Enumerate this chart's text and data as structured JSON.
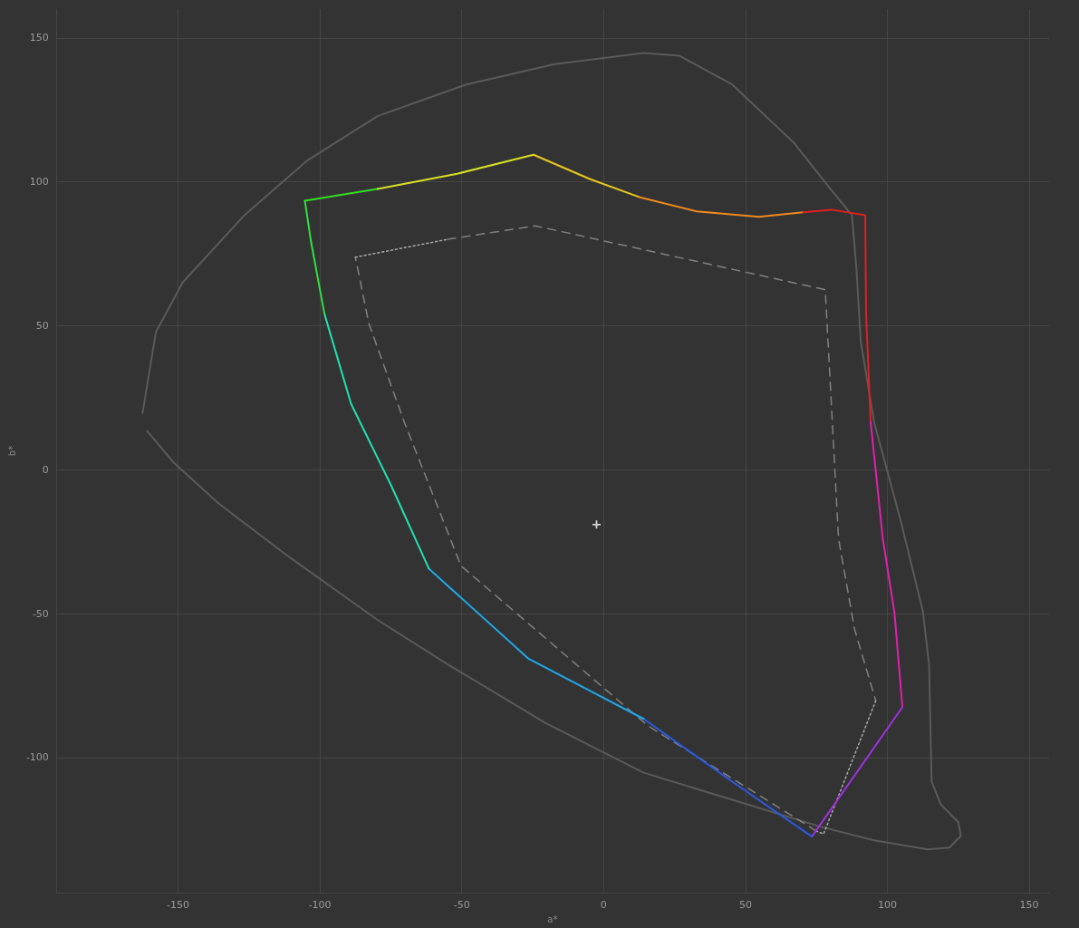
{
  "chart_data": {
    "type": "line",
    "xlabel": "a*",
    "ylabel": "b*",
    "xlim": [
      -193,
      157
    ],
    "ylim": [
      -147,
      160
    ],
    "xticks": [
      -150,
      -100,
      -50,
      0,
      50,
      100,
      150
    ],
    "yticks": [
      -100,
      -50,
      0,
      50,
      100,
      150
    ],
    "grid": true,
    "marker": "none",
    "line_style": "solid",
    "series": [
      {
        "color": "#5a5a5a",
        "x": [
          -162.5,
          -157.8,
          -148.4,
          -126.6,
          -104.7,
          -79.7,
          -48.4,
          -17.2,
          14.1,
          26.6,
          45.3,
          67.2,
          79.7,
          87.5,
          89.1,
          90.6,
          95.3,
          104.7,
          112.5,
          114.7,
          115.6,
          118.8,
          125,
          125.9,
          121.9,
          114.1,
          95.3,
          76.6,
          45.3,
          14.1,
          -20.3,
          -54.7,
          -79.7,
          -110.9,
          -135.9,
          -151.6,
          -160.9
        ],
        "values": [
          19.7,
          47.8,
          65,
          88.4,
          107.2,
          122.8,
          133.8,
          140.9,
          144.7,
          143.8,
          133.8,
          113.4,
          97.8,
          88.4,
          69.7,
          44.7,
          16.6,
          -17.8,
          -49.1,
          -67.8,
          -108.4,
          -116.3,
          -122.5,
          -127.2,
          -131.3,
          -131.9,
          -128.8,
          -124.1,
          -114.7,
          -105.3,
          -88.1,
          -67.8,
          -52.2,
          -30.3,
          -11.6,
          2.5,
          13.4
        ]
      },
      {
        "color": "#808080",
        "line_style": "dashed",
        "x": [
          -55,
          -24.1,
          78.1,
          82.8,
          88.4,
          95.9,
          null,
          75,
          15.6,
          -50.3,
          -70.3,
          -82.8,
          -87.5
        ],
        "values": [
          80,
          84.7,
          62.5,
          -24.1,
          -55.3,
          -80.3,
          null,
          -125.6,
          -89,
          -33.4,
          16.6,
          50.9,
          73.8
        ]
      },
      {
        "color": "#a8a8a8",
        "line_style": "dotted",
        "x": [
          -87.5,
          -55,
          null,
          95.9,
          77.5,
          75
        ],
        "values": [
          73.8,
          80,
          null,
          -80.3,
          -126.6,
          -125.6
        ]
      },
      {
        "color": "#33dd22",
        "x": [
          -105.3,
          -79.7
        ],
        "values": [
          93.4,
          97.5
        ]
      },
      {
        "color": "#d9e026",
        "x": [
          -79.7,
          -51.6,
          -24.7
        ],
        "values": [
          97.5,
          102.8,
          109.4
        ]
      },
      {
        "color": "#e8c81e",
        "x": [
          -24.7,
          -4.7,
          12.5
        ],
        "values": [
          109.4,
          100.9,
          94.7
        ]
      },
      {
        "color": "#ef8a1e",
        "x": [
          12.5,
          32.8,
          54.7,
          70.3
        ],
        "values": [
          94.7,
          89.7,
          87.8,
          89.4
        ]
      },
      {
        "color": "#e02020",
        "x": [
          70.3,
          80.3,
          92.2,
          92.5,
          94.1
        ],
        "values": [
          89.4,
          90.3,
          88.4,
          54.1,
          16.6
        ]
      },
      {
        "color": "#e020b0",
        "x": [
          94.1,
          98.4,
          102.5,
          105.3
        ],
        "values": [
          16.6,
          -24.1,
          -49.7,
          -82.5
        ]
      },
      {
        "color": "#a030e0",
        "x": [
          105.3,
          73.4
        ],
        "values": [
          -82.5,
          -127.5
        ]
      },
      {
        "color": "#2a5ae0",
        "x": [
          73.4,
          45.3,
          14.1
        ],
        "values": [
          -127.5,
          -108.4,
          -86.6
        ]
      },
      {
        "color": "#20a8e8",
        "x": [
          14.1,
          -26.6,
          -61.6
        ],
        "values": [
          -86.6,
          -65.6,
          -34.4
        ]
      },
      {
        "color": "#20e0b0",
        "x": [
          -61.6,
          -75,
          -89,
          -98.4
        ],
        "values": [
          -34.4,
          -5.3,
          22.8,
          54.1
        ]
      },
      {
        "color": "#30e040",
        "x": [
          -98.4,
          -103.1,
          -105.3
        ],
        "values": [
          54.1,
          79,
          93.4
        ]
      },
      {
        "type": "scatter",
        "marker": "cross",
        "color": "#ffffff",
        "x": [
          -2.5
        ],
        "values": [
          -19.1
        ]
      }
    ]
  }
}
